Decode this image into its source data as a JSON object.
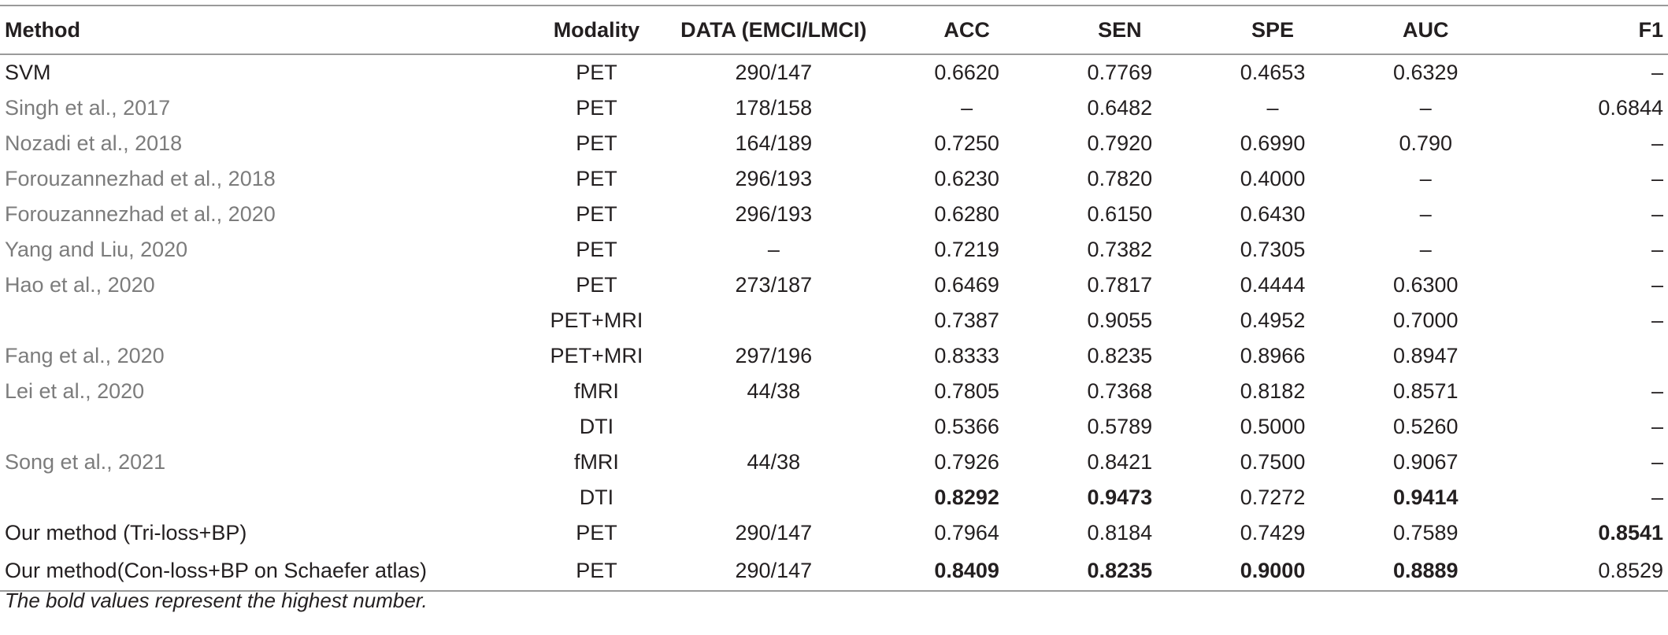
{
  "table": {
    "headers": [
      "Method",
      "Modality",
      "DATA (EMCI/LMCI)",
      "ACC",
      "SEN",
      "SPE",
      "AUC",
      "F1"
    ],
    "rows": [
      {
        "method": "SVM",
        "cite": false,
        "modality": "PET",
        "data": "290/147",
        "acc": "0.6620",
        "sen": "0.7769",
        "spe": "0.4653",
        "auc": "0.6329",
        "f1": "–",
        "bold": []
      },
      {
        "method": "Singh et al., 2017",
        "cite": true,
        "modality": "PET",
        "data": "178/158",
        "acc": "–",
        "sen": "0.6482",
        "spe": "–",
        "auc": "–",
        "f1": "0.6844",
        "bold": []
      },
      {
        "method": "Nozadi et al., 2018",
        "cite": true,
        "modality": "PET",
        "data": "164/189",
        "acc": "0.7250",
        "sen": "0.7920",
        "spe": "0.6990",
        "auc": "0.790",
        "f1": "–",
        "bold": []
      },
      {
        "method": "Forouzannezhad et al., 2018",
        "cite": true,
        "modality": "PET",
        "data": "296/193",
        "acc": "0.6230",
        "sen": "0.7820",
        "spe": "0.4000",
        "auc": "–",
        "f1": "–",
        "bold": []
      },
      {
        "method": "Forouzannezhad et al., 2020",
        "cite": true,
        "modality": "PET",
        "data": "296/193",
        "acc": "0.6280",
        "sen": "0.6150",
        "spe": "0.6430",
        "auc": "–",
        "f1": "–",
        "bold": []
      },
      {
        "method": "Yang and Liu, 2020",
        "cite": true,
        "modality": "PET",
        "data": "–",
        "acc": "0.7219",
        "sen": "0.7382",
        "spe": "0.7305",
        "auc": "–",
        "f1": "–",
        "bold": []
      },
      {
        "method": "Hao et al., 2020",
        "cite": true,
        "modality": "PET",
        "data": "273/187",
        "acc": "0.6469",
        "sen": "0.7817",
        "spe": "0.4444",
        "auc": "0.6300",
        "f1": "–",
        "bold": []
      },
      {
        "method": "",
        "cite": false,
        "modality": "PET+MRI",
        "data": "",
        "acc": "0.7387",
        "sen": "0.9055",
        "spe": "0.4952",
        "auc": "0.7000",
        "f1": "–",
        "bold": []
      },
      {
        "method": "Fang et al., 2020",
        "cite": true,
        "modality": "PET+MRI",
        "data": "297/196",
        "acc": "0.8333",
        "sen": "0.8235",
        "spe": "0.8966",
        "auc": "0.8947",
        "f1": "",
        "bold": []
      },
      {
        "method": "Lei et al., 2020",
        "cite": true,
        "modality": "fMRI",
        "data": "44/38",
        "acc": "0.7805",
        "sen": "0.7368",
        "spe": "0.8182",
        "auc": "0.8571",
        "f1": "–",
        "bold": []
      },
      {
        "method": "",
        "cite": false,
        "modality": "DTI",
        "data": "",
        "acc": "0.5366",
        "sen": "0.5789",
        "spe": "0.5000",
        "auc": "0.5260",
        "f1": "–",
        "bold": []
      },
      {
        "method": "Song et al., 2021",
        "cite": true,
        "modality": "fMRI",
        "data": "44/38",
        "acc": "0.7926",
        "sen": "0.8421",
        "spe": "0.7500",
        "auc": "0.9067",
        "f1": "–",
        "bold": []
      },
      {
        "method": "",
        "cite": false,
        "modality": "DTI",
        "data": "",
        "acc": "0.8292",
        "sen": "0.9473",
        "spe": "0.7272",
        "auc": "0.9414",
        "f1": "–",
        "bold": [
          "acc",
          "sen",
          "auc"
        ]
      },
      {
        "method": "Our method (Tri-loss+BP)",
        "cite": false,
        "modality": "PET",
        "data": "290/147",
        "acc": "0.7964",
        "sen": "0.8184",
        "spe": "0.7429",
        "auc": "0.7589",
        "f1": "0.8541",
        "bold": [
          "f1"
        ]
      },
      {
        "method": "Our method(Con-loss+BP on Schaefer atlas)",
        "cite": false,
        "modality": "PET",
        "data": "290/147",
        "acc": "0.8409",
        "sen": "0.8235",
        "spe": "0.9000",
        "auc": "0.8889",
        "f1": "0.8529",
        "bold": [
          "acc",
          "sen",
          "spe",
          "auc"
        ]
      }
    ]
  },
  "footnote": "The bold values represent the highest number."
}
